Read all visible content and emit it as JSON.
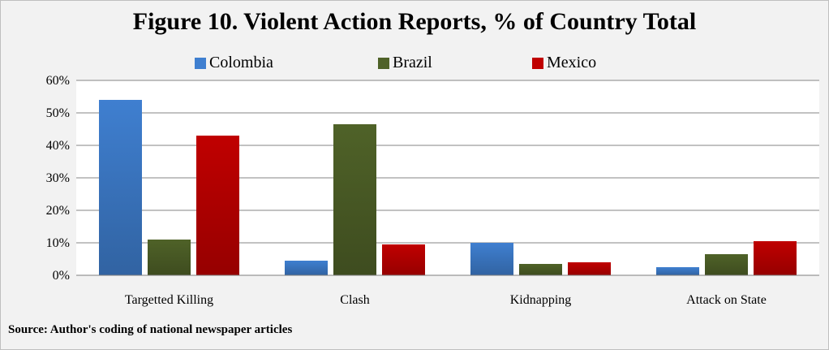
{
  "chart_data": {
    "type": "bar",
    "title": "Figure 10.  Violent Action Reports, % of Country Total",
    "categories": [
      "Targetted Killing",
      "Clash",
      "Kidnapping",
      "Attack on State"
    ],
    "series": [
      {
        "name": "Colombia",
        "values": [
          54,
          4.5,
          10,
          2.5
        ],
        "color": "#3f7fd0"
      },
      {
        "name": "Brazil",
        "values": [
          11,
          46.5,
          3.5,
          6.5
        ],
        "color": "#4f6228"
      },
      {
        "name": "Mexico",
        "values": [
          43,
          9.5,
          4,
          10.5
        ],
        "color": "#c00000"
      }
    ],
    "y_ticks": [
      "0%",
      "10%",
      "20%",
      "30%",
      "40%",
      "50%",
      "60%"
    ],
    "ylim": [
      0,
      60
    ],
    "grid": true,
    "legend_position": "top"
  },
  "source": "Source: Author's coding of national newspaper articles",
  "background_color": "#f2f2f2",
  "plot_background_color": "#ffffff"
}
